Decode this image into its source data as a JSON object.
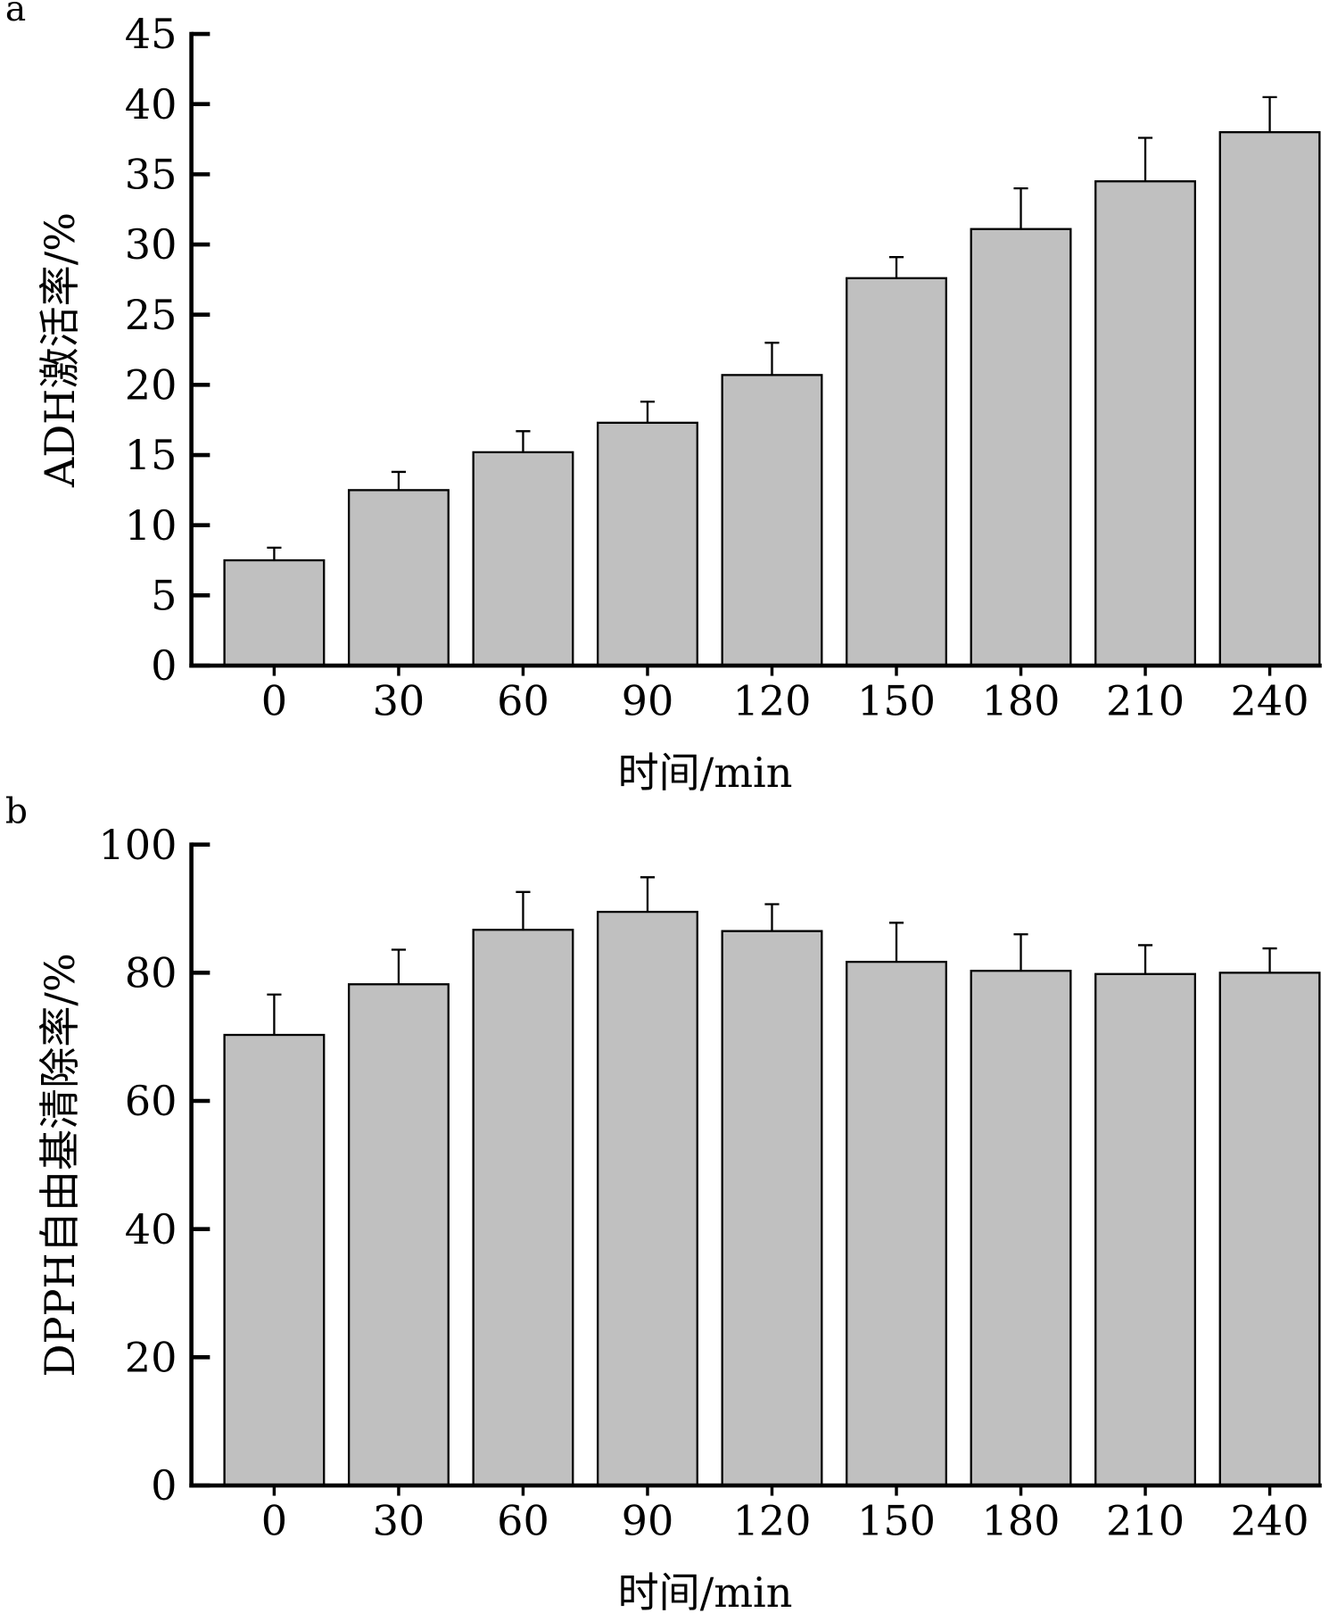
{
  "chart_data": [
    {
      "panel": "a",
      "type": "bar",
      "xlabel": "时间/min",
      "ylabel": "ADH激活率/%",
      "ylim": [
        0,
        45
      ],
      "yticks": [
        0,
        5,
        10,
        15,
        20,
        25,
        30,
        35,
        40,
        45
      ],
      "categories": [
        "0",
        "30",
        "60",
        "90",
        "120",
        "150",
        "180",
        "210",
        "240"
      ],
      "values": [
        7.5,
        12.5,
        15.2,
        17.3,
        20.7,
        27.6,
        31.1,
        34.5,
        38.0
      ],
      "errors": [
        0.9,
        1.3,
        1.5,
        1.5,
        2.3,
        1.5,
        2.9,
        3.1,
        2.5
      ],
      "bar_color": "#c0c0c0"
    },
    {
      "panel": "b",
      "type": "bar",
      "xlabel": "时间/min",
      "ylabel": "DPPH自由基清除率/%",
      "ylim": [
        0,
        100
      ],
      "yticks": [
        0,
        20,
        40,
        60,
        80,
        100
      ],
      "categories": [
        "0",
        "30",
        "60",
        "90",
        "120",
        "150",
        "180",
        "210",
        "240"
      ],
      "values": [
        70.3,
        78.2,
        86.7,
        89.5,
        86.5,
        81.7,
        80.3,
        79.8,
        80.0
      ],
      "errors": [
        6.3,
        5.4,
        5.9,
        5.4,
        4.2,
        6.1,
        5.7,
        4.5,
        3.8
      ],
      "bar_color": "#c0c0c0"
    }
  ]
}
